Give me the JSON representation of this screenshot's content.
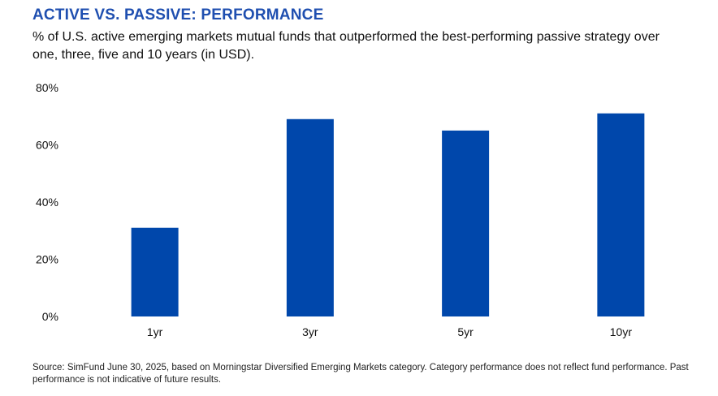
{
  "header": {
    "title": "ACTIVE VS. PASSIVE: PERFORMANCE",
    "subtitle": "% of U.S. active emerging markets mutual funds that outperformed the best-performing passive strategy over one, three, five and 10 years (in USD)."
  },
  "footer": {
    "source": "Source: SimFund June 30, 2025, based on Morningstar Diversified Emerging Markets category. Category performance does not reflect fund performance. Past performance is not indicative of future results."
  },
  "colors": {
    "bar": "#0047ab",
    "title": "#1f4fb0"
  },
  "chart_data": {
    "type": "bar",
    "title": "ACTIVE VS. PASSIVE: PERFORMANCE",
    "subtitle": "% of U.S. active emerging markets mutual funds that outperformed the best-performing passive strategy over one, three, five and 10 years (in USD).",
    "categories": [
      "1yr",
      "3yr",
      "5yr",
      "10yr"
    ],
    "values": [
      31,
      69,
      65,
      71
    ],
    "ylim": [
      0,
      80
    ],
    "yticks": [
      0,
      20,
      40,
      60,
      80
    ],
    "ytick_labels": [
      "0%",
      "20%",
      "40%",
      "60%",
      "80%"
    ],
    "xlabel": "",
    "ylabel": "",
    "grid": false,
    "legend": "none"
  }
}
